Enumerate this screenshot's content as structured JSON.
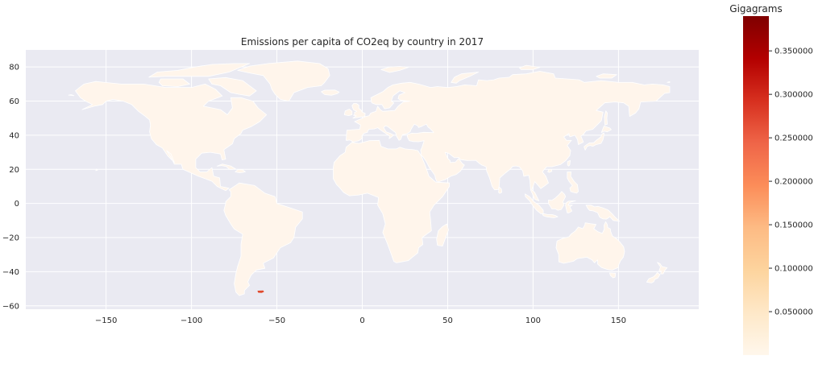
{
  "chart_data": {
    "type": "choropleth",
    "title": "Emissions per capita of CO2eq by country in 2017",
    "xlabel": "",
    "ylabel": "",
    "xlim": [
      -197,
      197
    ],
    "ylim": [
      -62,
      90
    ],
    "x_ticks": [
      -150,
      -100,
      -50,
      0,
      50,
      100,
      150
    ],
    "y_ticks": [
      -60,
      -40,
      -20,
      0,
      20,
      40,
      60,
      80
    ],
    "grid": true,
    "background_color": "#eaeaf2",
    "land_color": "#fff5eb",
    "border_color": "#ffffff",
    "colormap": "OrRd",
    "highlight": {
      "lon": -59.5,
      "lat": -51.8,
      "color": "#e04a2d"
    },
    "colorbar": {
      "title": "Gigagrams",
      "min": 0.0,
      "max": 0.39,
      "ticks": [
        0.05,
        0.1,
        0.15,
        0.2,
        0.25,
        0.3,
        0.35
      ],
      "tick_labels": [
        "0.050000",
        "0.100000",
        "0.150000",
        "0.200000",
        "0.250000",
        "0.300000",
        "0.350000"
      ],
      "colors": [
        "#fff7ec",
        "#fee8c8",
        "#fdd49e",
        "#fdbb84",
        "#fc8d59",
        "#ef6548",
        "#d7301f",
        "#b30000",
        "#7f0000"
      ]
    }
  }
}
